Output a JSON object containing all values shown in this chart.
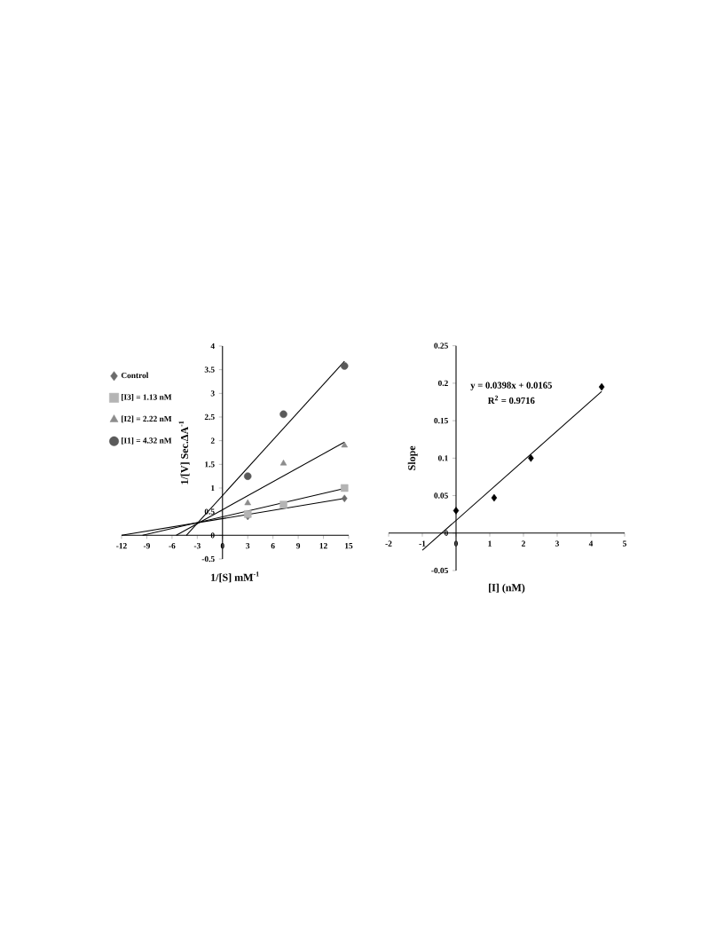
{
  "chart_data": [
    {
      "type": "scatter",
      "xlabel": "1/[S] mM$^{-1}$",
      "ylabel": "1/[V] Sec.ΔA$^{-1}$",
      "xlim": [
        -12,
        15
      ],
      "ylim": [
        -0.5,
        4
      ],
      "xticks": [
        -12,
        -9,
        -6,
        -3,
        0,
        3,
        6,
        9,
        12,
        15
      ],
      "yticks": [
        -0.5,
        0,
        0.5,
        1,
        1.5,
        2,
        2.5,
        3,
        3.5,
        4
      ],
      "legend": "top left",
      "grid": false,
      "series": [
        {
          "name": "Control",
          "color": "#6b6b6b",
          "marker": "diamond",
          "x": [
            3,
            7.25,
            14.5
          ],
          "values": [
            0.4,
            null,
            0.78
          ]
        },
        {
          "name": "[I3] = 1.13 nM",
          "color": "#b4b4b4",
          "marker": "square",
          "x": [
            3,
            7.25,
            14.5
          ],
          "values": [
            0.45,
            0.65,
            1.0
          ]
        },
        {
          "name": "[I2] = 2.22 nM",
          "color": "#8c8c8c",
          "marker": "triangle",
          "x": [
            3,
            7.25,
            14.5
          ],
          "values": [
            0.68,
            1.52,
            1.9
          ]
        },
        {
          "name": "[I1] = 4.32 nM",
          "color": "#5a5a5a",
          "marker": "circle",
          "x": [
            3,
            7.25,
            14.5
          ],
          "values": [
            1.25,
            2.56,
            3.58
          ]
        },
        {
          "type": "line",
          "color": "#000000",
          "x": [
            -12,
            14.5
          ],
          "values": [
            0,
            0.78
          ]
        },
        {
          "type": "line",
          "color": "#000000",
          "x": [
            -9.5,
            14.5
          ],
          "values": [
            0,
            0.99
          ]
        },
        {
          "type": "line",
          "color": "#000000",
          "x": [
            -5.5,
            14.5
          ],
          "values": [
            0,
            1.97
          ]
        },
        {
          "type": "line",
          "color": "#000000",
          "x": [
            -4.3,
            14.5
          ],
          "values": [
            0,
            3.68
          ]
        }
      ]
    },
    {
      "type": "scatter",
      "xlabel": "[I] (nM)",
      "ylabel": "Slope",
      "xlim": [
        -2,
        5
      ],
      "ylim": [
        -0.05,
        0.25
      ],
      "xticks": [
        -2,
        -1,
        0,
        1,
        2,
        3,
        4,
        5
      ],
      "yticks": [
        -0.05,
        0,
        0.05,
        0.1,
        0.15,
        0.2,
        0.25
      ],
      "grid": false,
      "annotations": [
        "y = 0.0398x + 0.0165",
        "R$^{2}$ = 0.9716"
      ],
      "series": [
        {
          "color": "#000000",
          "marker": "diamond",
          "x": [
            0,
            1.13,
            2.22,
            4.32
          ],
          "values": [
            0.03,
            0.047,
            0.1,
            0.195
          ]
        },
        {
          "type": "line",
          "color": "#000000",
          "x": [
            -1,
            4.32
          ],
          "values": [
            -0.023,
            0.189
          ]
        }
      ]
    }
  ]
}
